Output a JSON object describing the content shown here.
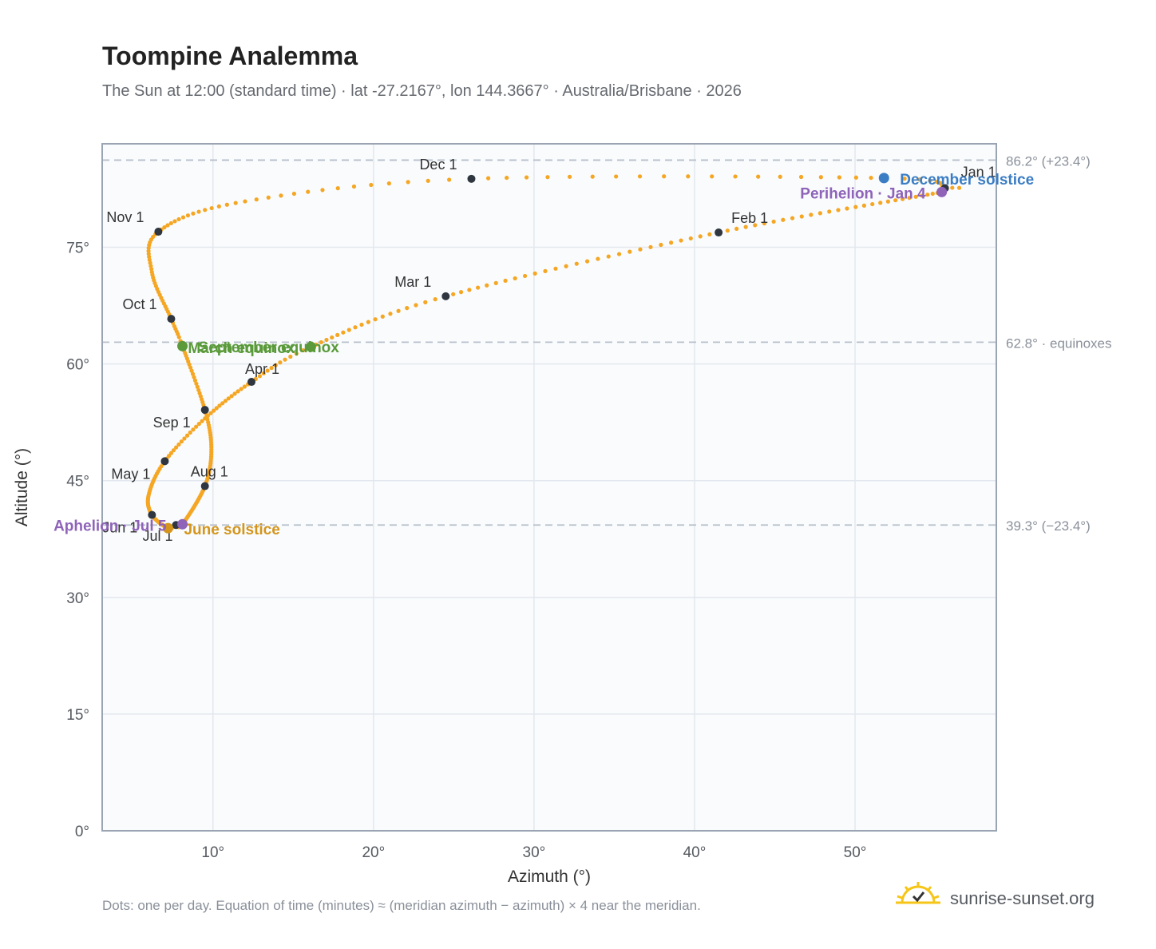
{
  "title": "Toompine Analemma",
  "subtitle": "The Sun at 12:00 (standard time) · lat -27.2167°, lon 144.3667° · Australia/Brisbane · 2026",
  "footer_note": "Dots: one per day. Equation of time (minutes) ≈ (meridian azimuth − azimuth) × 4 near the meridian.",
  "brand": {
    "name": "sunrise-sunset.org",
    "icon": "sun-logo-icon"
  },
  "colors": {
    "curve": "#f5a623",
    "month_dot": "#2f3640",
    "december_solstice": "#3b7dc4",
    "june_solstice": "#d4951a",
    "equinox": "#5a9a3a",
    "perihelion": "#8e63b8",
    "aphelion": "#8e63b8",
    "reference_line": "#b8c0cc",
    "plot_background": "#f9fbfd",
    "grid": "#e3e8ee",
    "frame": "#9aa4b2"
  },
  "chart_data": {
    "type": "scatter",
    "xlabel": "Azimuth (°)",
    "ylabel": "Altitude (°)",
    "xlim": [
      3.1,
      58.8
    ],
    "ylim": [
      0,
      88.3
    ],
    "xticks": [
      10,
      20,
      30,
      40,
      50
    ],
    "xtick_labels": [
      "10°",
      "20°",
      "30°",
      "40°",
      "50°"
    ],
    "yticks": [
      0,
      15,
      30,
      45,
      60,
      75
    ],
    "ytick_labels": [
      "0°",
      "15°",
      "30°",
      "45°",
      "60°",
      "75°"
    ],
    "grid": true,
    "series_note": "one dot per day",
    "month_markers": [
      {
        "label": "Jan 1",
        "az": 55.6,
        "alt": 82.6
      },
      {
        "label": "Feb 1",
        "az": 41.5,
        "alt": 76.9
      },
      {
        "label": "Mar 1",
        "az": 24.5,
        "alt": 68.7
      },
      {
        "label": "Apr 1",
        "az": 12.4,
        "alt": 57.7
      },
      {
        "label": "May 1",
        "az": 7.0,
        "alt": 47.5
      },
      {
        "label": "Jun 1",
        "az": 6.2,
        "alt": 40.6
      },
      {
        "label": "Jul 1",
        "az": 7.7,
        "alt": 39.3
      },
      {
        "label": "Aug 1",
        "az": 9.5,
        "alt": 44.3
      },
      {
        "label": "Sep 1",
        "az": 9.5,
        "alt": 54.1
      },
      {
        "label": "Oct 1",
        "az": 7.4,
        "alt": 65.8
      },
      {
        "label": "Nov 1",
        "az": 6.6,
        "alt": 77.0
      },
      {
        "label": "Dec 1",
        "az": 26.1,
        "alt": 83.8
      }
    ],
    "events": [
      {
        "label": "December solstice",
        "az": 51.8,
        "alt": 83.9,
        "color_key": "december_solstice"
      },
      {
        "label": "Perihelion · Jan 4",
        "az": 55.4,
        "alt": 82.1,
        "color_key": "perihelion"
      },
      {
        "label": "June solstice",
        "az": 7.2,
        "alt": 38.9,
        "color_key": "june_solstice"
      },
      {
        "label": "Aphelion · Jul 5",
        "az": 8.1,
        "alt": 39.4,
        "color_key": "aphelion"
      },
      {
        "label": "March equinox",
        "az": 16.1,
        "alt": 62.2,
        "color_key": "equinox"
      },
      {
        "label": "September equinox",
        "az": 8.1,
        "alt": 62.3,
        "color_key": "equinox"
      }
    ],
    "reference_lines": [
      {
        "label": "86.2° (+23.4°)",
        "alt": 86.2
      },
      {
        "label": "62.8° · equinoxes",
        "alt": 62.8
      },
      {
        "label": "39.3° (−23.4°)",
        "alt": 39.3
      }
    ],
    "path_anchors": [
      {
        "day": 0,
        "az": 55.6,
        "alt": 82.6
      },
      {
        "day": 3,
        "az": 55.4,
        "alt": 82.1
      },
      {
        "day": 31,
        "az": 41.5,
        "alt": 76.9
      },
      {
        "day": 59,
        "az": 24.5,
        "alt": 68.7
      },
      {
        "day": 78,
        "az": 16.1,
        "alt": 62.2
      },
      {
        "day": 90,
        "az": 12.4,
        "alt": 57.7
      },
      {
        "day": 105,
        "az": 9.5,
        "alt": 53.0
      },
      {
        "day": 120,
        "az": 7.0,
        "alt": 47.5
      },
      {
        "day": 135,
        "az": 6.0,
        "alt": 43.2
      },
      {
        "day": 151,
        "az": 6.2,
        "alt": 40.6
      },
      {
        "day": 171,
        "az": 7.2,
        "alt": 38.9
      },
      {
        "day": 181,
        "az": 7.7,
        "alt": 39.3
      },
      {
        "day": 186,
        "az": 8.1,
        "alt": 39.4
      },
      {
        "day": 212,
        "az": 9.5,
        "alt": 44.3
      },
      {
        "day": 228,
        "az": 9.9,
        "alt": 49.0
      },
      {
        "day": 243,
        "az": 9.5,
        "alt": 54.1
      },
      {
        "day": 265,
        "az": 8.1,
        "alt": 62.3
      },
      {
        "day": 273,
        "az": 7.4,
        "alt": 65.8
      },
      {
        "day": 290,
        "az": 6.2,
        "alt": 71.8
      },
      {
        "day": 304,
        "az": 6.6,
        "alt": 77.0
      },
      {
        "day": 320,
        "az": 12.0,
        "alt": 80.9
      },
      {
        "day": 334,
        "az": 26.1,
        "alt": 83.8
      },
      {
        "day": 354,
        "az": 51.8,
        "alt": 83.9
      },
      {
        "day": 364,
        "az": 55.6,
        "alt": 82.6
      }
    ]
  }
}
